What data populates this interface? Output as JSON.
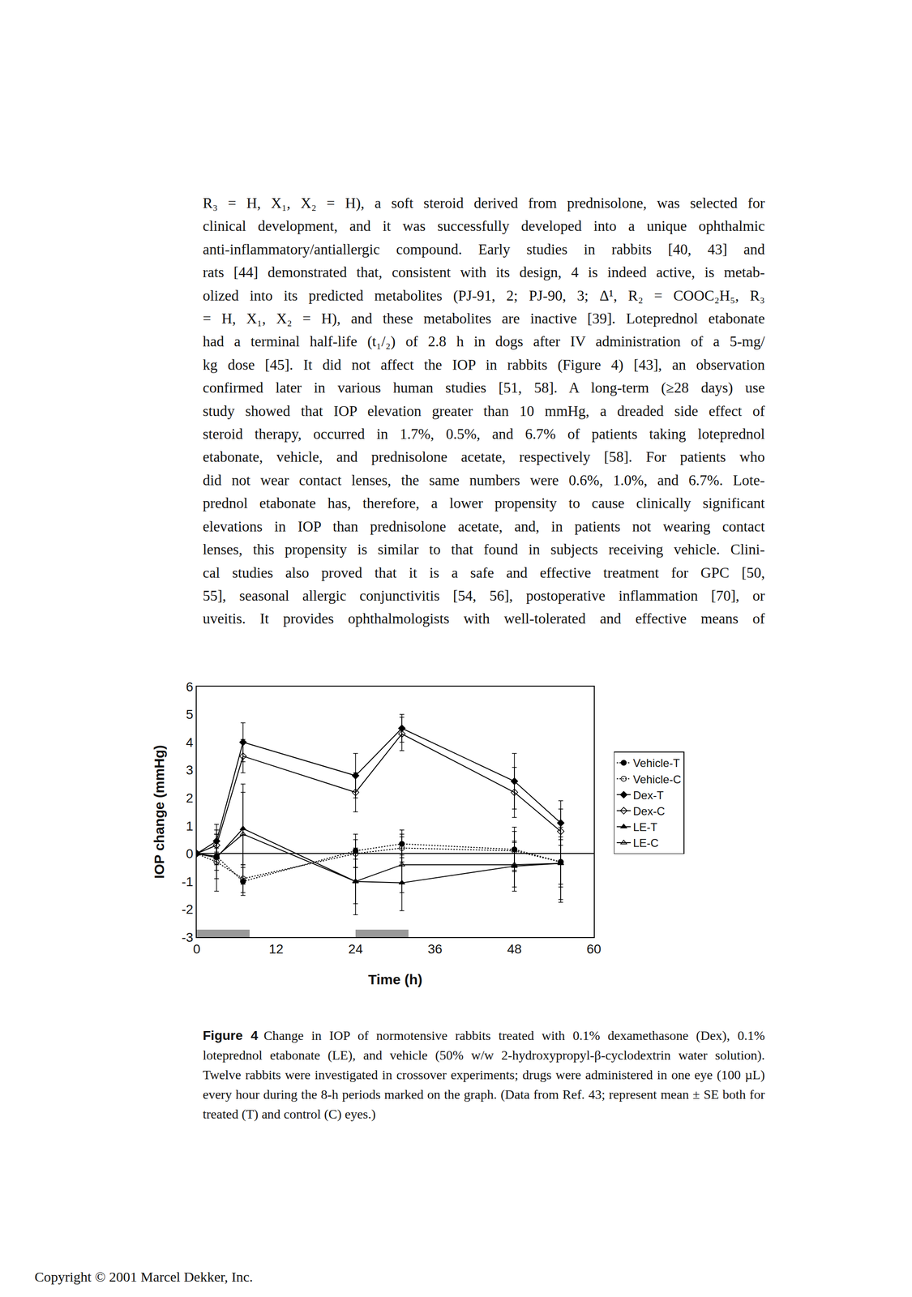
{
  "body": {
    "lines": [
      "R₃ = H, X₁, X₂ = H), a soft steroid derived from prednisolone, was selected for",
      "clinical development, and it was successfully developed into a unique ophthalmic",
      "anti-inflammatory/antiallergic compound. Early studies in rabbits [40, 43] and",
      "rats [44] demonstrated that, consistent with its design, 4 is indeed active, is metab-",
      "olized into its predicted metabolites (PJ-91, 2; PJ-90, 3; Δ¹, R₂ = COOC₂H₅, R₃",
      "= H, X₁, X₂ = H), and these metabolites are inactive [39]. Loteprednol etabonate",
      "had a terminal half-life (t₁/₂) of 2.8 h in dogs after IV administration of a 5-mg/",
      "kg dose [45]. It did not affect the IOP in rabbits (Figure 4) [43], an observation",
      "confirmed later in various human studies [51, 58]. A long-term (≥28 days) use",
      "study showed that IOP elevation greater than 10 mmHg, a dreaded side effect of",
      "steroid therapy, occurred in 1.7%, 0.5%, and 6.7% of patients taking loteprednol",
      "etabonate, vehicle, and prednisolone acetate, respectively [58]. For patients who",
      "did not wear contact lenses, the same numbers were 0.6%, 1.0%, and 6.7%. Lote-",
      "prednol etabonate has, therefore, a lower propensity to cause clinically significant",
      "elevations in IOP than prednisolone acetate, and, in patients not wearing contact",
      "lenses, this propensity is similar to that found in subjects receiving vehicle. Clini-",
      "cal studies also proved that it is a safe and effective treatment for GPC [50,",
      "55], seasonal allergic conjunctivitis [54, 56], postoperative inflammation [70], or",
      "uveitis. It provides ophthalmologists with well-tolerated and effective means of"
    ]
  },
  "chart_data": {
    "type": "line",
    "x_label": "Time (h)",
    "y_label": "IOP change (mmHg)",
    "x": [
      0,
      3,
      7,
      24,
      31,
      48,
      55
    ],
    "xlim": [
      0,
      60
    ],
    "xticks": [
      0,
      12,
      24,
      36,
      48,
      60
    ],
    "ylim": [
      -3,
      6
    ],
    "yticks": [
      -3,
      -2,
      -1,
      0,
      1,
      2,
      3,
      4,
      5,
      6
    ],
    "legend": "right",
    "dosing_periods": [
      [
        0,
        8
      ],
      [
        24,
        32
      ]
    ],
    "series": [
      {
        "name": "Vehicle-T",
        "color": "#000000",
        "marker": "circle",
        "line_style": "dot",
        "values": [
          0,
          -0.1,
          -1.0,
          0.1,
          0.35,
          0.15,
          -0.3
        ],
        "error": [
          0,
          0.3,
          0.5,
          0.6,
          0.5,
          0.8,
          0.9
        ]
      },
      {
        "name": "Vehicle-C",
        "color": "#000000",
        "marker": "circle-open",
        "line_style": "dot",
        "values": [
          0,
          -0.3,
          -0.9,
          0.0,
          0.2,
          0.1,
          -0.3
        ],
        "error": [
          0,
          0.3,
          0.5,
          0.5,
          0.5,
          0.7,
          0.8
        ]
      },
      {
        "name": "Dex-T",
        "color": "#000000",
        "marker": "diamond",
        "line_style": "solid",
        "values": [
          0,
          0.45,
          4.0,
          2.8,
          4.5,
          2.6,
          1.1
        ],
        "error": [
          0,
          0.4,
          0.7,
          0.8,
          0.5,
          1.0,
          0.8
        ]
      },
      {
        "name": "Dex-C",
        "color": "#000000",
        "marker": "diamond-open",
        "line_style": "solid",
        "values": [
          0,
          0.3,
          3.5,
          2.2,
          4.3,
          2.2,
          0.8
        ],
        "error": [
          0,
          0.4,
          0.6,
          0.7,
          0.6,
          0.9,
          0.8
        ]
      },
      {
        "name": "LE-T",
        "color": "#000000",
        "marker": "triangle-up",
        "line_style": "solid",
        "values": [
          0,
          -0.15,
          0.9,
          -1.0,
          -1.05,
          -0.45,
          -0.35
        ],
        "error": [
          0,
          1.2,
          1.3,
          1.2,
          1.0,
          0.9,
          1.4
        ]
      },
      {
        "name": "LE-C",
        "color": "#000000",
        "marker": "triangle-up-open",
        "line_style": "solid",
        "values": [
          0,
          -0.1,
          0.7,
          -1.0,
          -0.4,
          -0.4,
          -0.35
        ],
        "error": [
          0,
          0.8,
          1.8,
          0.8,
          1.0,
          0.8,
          1.3
        ]
      }
    ]
  },
  "caption": {
    "label": "Figure 4",
    "text": "Change in IOP of normotensive rabbits treated with 0.1% dexamethasone (Dex), 0.1% loteprednol etabonate (LE), and vehicle (50% w/w 2-hydroxypropyl-β-cyclodextrin water solution). Twelve rabbits were investigated in crossover experiments; drugs were administered in one eye (100 µL) every hour during the 8-h periods marked on the graph. (Data from Ref. 43; represent mean ± SE both for treated (T) and control (C) eyes.)"
  },
  "footer": "Copyright © 2001 Marcel Dekker, Inc."
}
